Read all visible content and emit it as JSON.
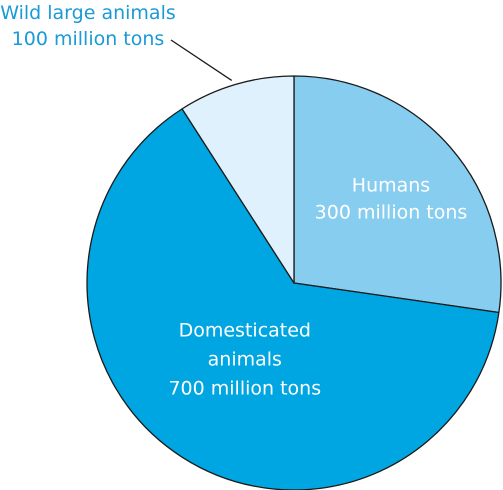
{
  "chart_data": {
    "type": "pie",
    "start_angle_deg": 0,
    "direction": "clockwise",
    "slices": [
      {
        "label_lines": [
          "Humans",
          "300 million tons"
        ],
        "value": 300,
        "color": "#87cdf0",
        "label_color": "#ffffff",
        "label_placement": "inside"
      },
      {
        "label_lines": [
          "Domesticated",
          "animals",
          "700 million tons"
        ],
        "value": 700,
        "color": "#00a6e1",
        "label_color": "#ffffff",
        "label_placement": "inside"
      },
      {
        "label_lines": [
          "Wild large animals",
          "100 million tons"
        ],
        "value": 100,
        "color": "#dff1fc",
        "label_color": "#1a9ad6",
        "label_placement": "outside-leader"
      }
    ],
    "edge_color": "#1a1a1a"
  }
}
